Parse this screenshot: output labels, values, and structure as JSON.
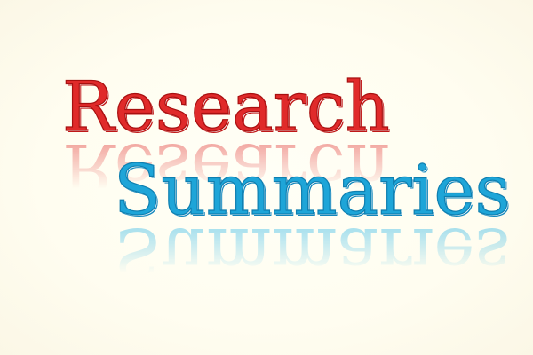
{
  "title": {
    "line1": "Research",
    "line2": "Summaries"
  },
  "colors": {
    "background": "#fffdf0",
    "line1": "#e02a2a",
    "line2": "#1ea5d8"
  }
}
